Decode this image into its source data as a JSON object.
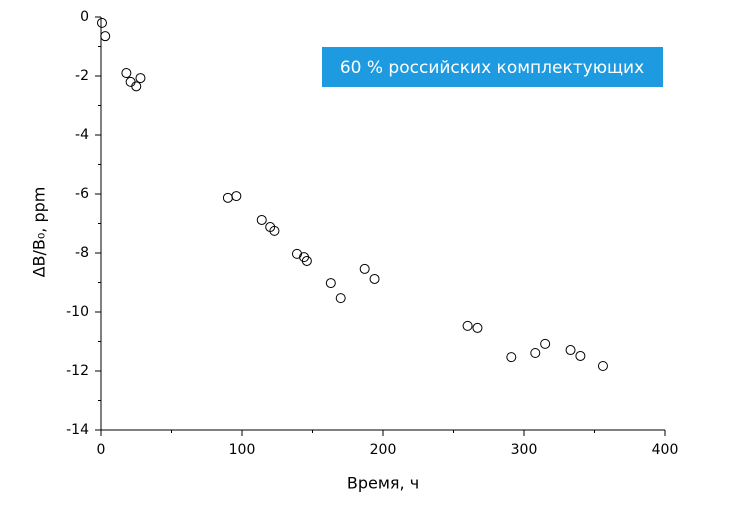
{
  "chart_data": {
    "type": "scatter",
    "x_label": "Время, ч",
    "y_label": "ΔB/B₀, ppm",
    "annotation": "60 % российских комплектующих",
    "xlim": [
      0,
      400
    ],
    "xticks": [
      0,
      100,
      200,
      300,
      400
    ],
    "ylim": [
      -14,
      0
    ],
    "yticks": [
      0,
      -2,
      -4,
      -6,
      -8,
      -10,
      -12,
      -14
    ],
    "grid": false,
    "series": [
      {
        "name": null,
        "color": "#000000",
        "x": [
          0.7,
          3,
          18,
          21,
          25,
          28,
          90,
          96,
          114,
          120,
          123,
          139,
          144,
          146,
          163,
          170,
          187,
          194,
          260,
          267,
          291,
          308,
          315,
          333,
          340,
          356
        ],
        "values": [
          -0.2,
          -0.65,
          -1.9,
          -2.2,
          -2.35,
          -2.07,
          -6.13,
          -6.07,
          -6.88,
          -7.12,
          -7.25,
          -8.03,
          -8.14,
          -8.27,
          -9.02,
          -9.53,
          -8.54,
          -8.88,
          -10.47,
          -10.54,
          -11.53,
          -11.39,
          -11.08,
          -11.29,
          -11.49,
          -11.83
        ]
      }
    ]
  }
}
